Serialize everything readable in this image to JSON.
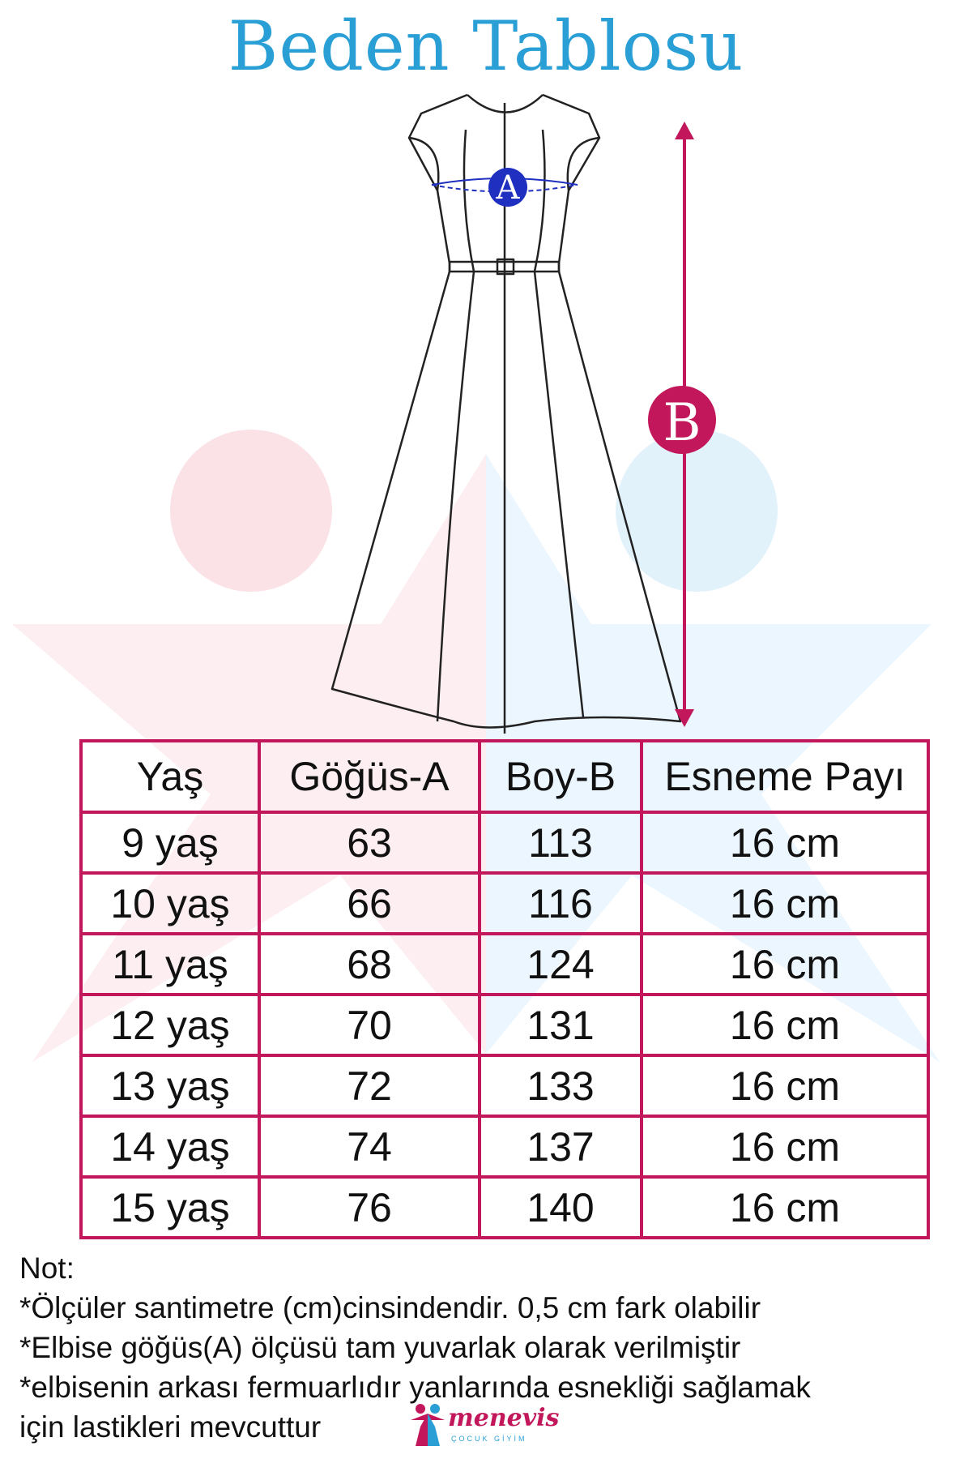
{
  "title": "Beden Tablosu",
  "markers": {
    "a": "A",
    "b": "B"
  },
  "table": {
    "headers": [
      "Yaş",
      "Göğüs-A",
      "Boy-B",
      "Esneme Payı"
    ],
    "rows": [
      [
        "9 yaş",
        "63",
        "113",
        "16 cm"
      ],
      [
        "10 yaş",
        "66",
        "116",
        "16 cm"
      ],
      [
        "11 yaş",
        "68",
        "124",
        "16 cm"
      ],
      [
        "12 yaş",
        "70",
        "131",
        "16 cm"
      ],
      [
        "13 yaş",
        "72",
        "133",
        "16 cm"
      ],
      [
        "14 yaş",
        "74",
        "137",
        "16 cm"
      ],
      [
        "15 yaş",
        "76",
        "140",
        "16 cm"
      ]
    ]
  },
  "notes": {
    "heading": "Not:",
    "lines": [
      "*Ölçüler santimetre (cm)cinsindendir. 0,5 cm fark olabilir",
      "*Elbise göğüs(A) ölçüsü tam yuvarlak olarak verilmiştir",
      "*elbisenin arkası fermuarlıdır yanlarında esnekliği sağlamak",
      "için lastikleri mevcuttur"
    ]
  },
  "brand": {
    "name": "menevis",
    "subtitle": "ÇOCUK GİYİM"
  },
  "colors": {
    "title": "#2a9fd6",
    "table_border": "#c2185b",
    "marker_a": "#1f2fbf",
    "marker_b": "#c2185b"
  }
}
